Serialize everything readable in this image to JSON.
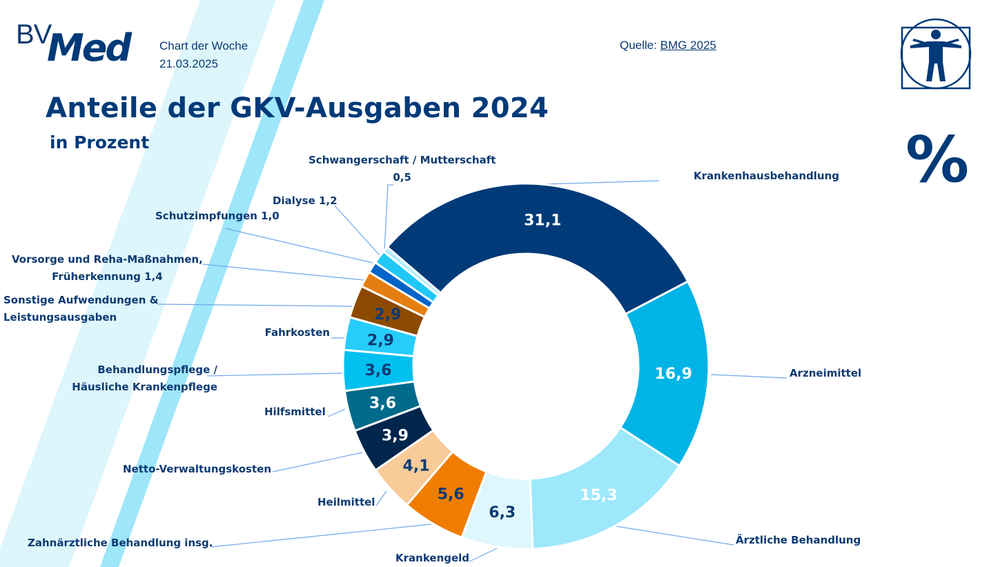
{
  "header": {
    "logo_bv": "BV",
    "logo_med": "Med",
    "series_label": "Chart der Woche",
    "date": "21.03.2025",
    "source_prefix": "Quelle:",
    "source_link": "BMG 2025",
    "percent_symbol": "%"
  },
  "icons": {
    "vitruvian": "vitruvian-man-icon",
    "percent": "percent-icon"
  },
  "colors": {
    "brand_dark": "#003a78",
    "leader_line": "#6fa8e8",
    "stripe_light": "#ddf6fc",
    "stripe_mid": "#9ee6fa"
  },
  "chart_data": {
    "type": "pie",
    "donut": true,
    "title": "Anteile der GKV-Ausgaben 2024",
    "subtitle": "in Prozent",
    "unit": "%",
    "start_angle_deg": -49.3,
    "direction": "clockwise",
    "slices": [
      {
        "label": "Krankenhausbehandlung",
        "value": 31.1,
        "display": "31,1",
        "color": "#003a78",
        "text_color": "#ffffff",
        "show_in_ring": true,
        "label_lines": [
          "Krankenhausbehandlung"
        ]
      },
      {
        "label": "Arzneimittel",
        "value": 16.9,
        "display": "16,9",
        "color": "#00b4e6",
        "text_color": "#ffffff",
        "show_in_ring": true,
        "label_lines": [
          "Arzneimittel"
        ]
      },
      {
        "label": "Ärztliche Behandlung",
        "value": 15.3,
        "display": "15,3",
        "color": "#9ee8fc",
        "text_color": "#ffffff",
        "show_in_ring": true,
        "label_lines": [
          "Ärztliche Behandlung"
        ]
      },
      {
        "label": "Krankengeld",
        "value": 6.3,
        "display": "6,3",
        "color": "#def7fd",
        "text_color": "#0d3a72",
        "show_in_ring": true,
        "label_lines": [
          "Krankengeld"
        ]
      },
      {
        "label": "Zahnärztliche Behandlung insg.",
        "value": 5.6,
        "display": "5,6",
        "color": "#f07d00",
        "text_color": "#0d3a72",
        "show_in_ring": true,
        "label_lines": [
          "Zahnärztliche Behandlung insg."
        ]
      },
      {
        "label": "Heilmittel",
        "value": 4.1,
        "display": "4,1",
        "color": "#f8cb99",
        "text_color": "#0d3a72",
        "show_in_ring": true,
        "label_lines": [
          "Heilmittel"
        ]
      },
      {
        "label": "Netto-Verwaltungskosten",
        "value": 3.9,
        "display": "3,9",
        "color": "#00264d",
        "text_color": "#ffffff",
        "show_in_ring": true,
        "label_lines": [
          "Netto-Verwaltungskosten"
        ]
      },
      {
        "label": "Hilfsmittel",
        "value": 3.6,
        "display": "3,6",
        "color": "#006a8a",
        "text_color": "#ffffff",
        "show_in_ring": true,
        "label_lines": [
          "Hilfsmittel"
        ]
      },
      {
        "label": "Behandlungspflege / Häusliche Krankenpflege",
        "value": 3.6,
        "display": "3,6",
        "color": "#00c0f0",
        "text_color": "#0d3a72",
        "show_in_ring": true,
        "label_lines": [
          "Behandlungspflege /",
          "Häusliche Krankenpflege"
        ]
      },
      {
        "label": "Fahrkosten",
        "value": 2.9,
        "display": "2,9",
        "color": "#26cdfa",
        "text_color": "#0d3a72",
        "show_in_ring": true,
        "label_lines": [
          "Fahrkosten"
        ]
      },
      {
        "label": "Sonstige Aufwendungen & Leistungsausgaben",
        "value": 2.9,
        "display": "2,9",
        "color": "#8c4a00",
        "text_color": "#0d3a72",
        "show_in_ring": true,
        "label_lines": [
          "Sonstige Aufwendungen &",
          "Leistungsausgaben"
        ]
      },
      {
        "label": "Vorsorge und Reha-Maßnahmen, Früherkennung",
        "value": 1.4,
        "display": "1,4",
        "color": "#e57e10",
        "text_color": "#0d3a72",
        "show_in_ring": false,
        "label_lines": [
          "Vorsorge und Reha-Maßnahmen,",
          "Früherkennung 1,4"
        ]
      },
      {
        "label": "Schutzimpfungen",
        "value": 1.0,
        "display": "1,0",
        "color": "#0064c8",
        "text_color": "#0d3a72",
        "show_in_ring": false,
        "label_lines": [
          "Schutzimpfungen 1,0"
        ]
      },
      {
        "label": "Dialyse",
        "value": 1.2,
        "display": "1,2",
        "color": "#20c8f8",
        "text_color": "#0d3a72",
        "show_in_ring": false,
        "label_lines": [
          "Dialyse 1,2"
        ]
      },
      {
        "label": "Schwangerschaft / Mutterschaft",
        "value": 0.5,
        "display": "0,5",
        "color": "#b4ecfc",
        "text_color": "#0d3a72",
        "show_in_ring": false,
        "label_lines": [
          "Schwangerschaft / Mutterschaft",
          "0,5"
        ]
      }
    ]
  }
}
